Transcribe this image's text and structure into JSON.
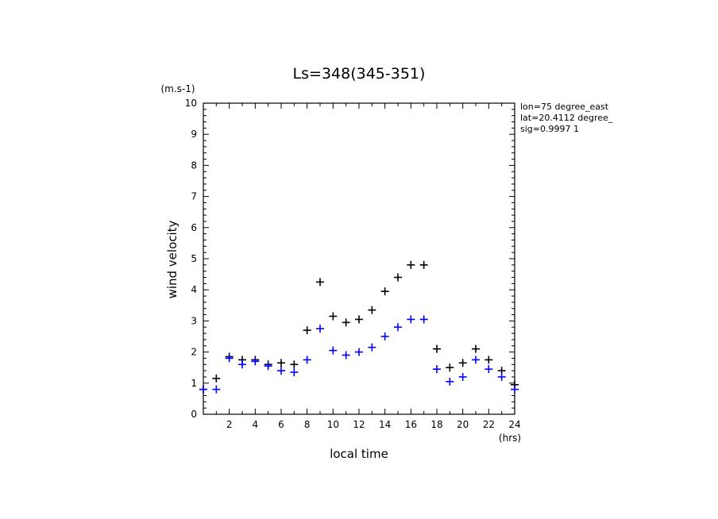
{
  "chart_data": {
    "type": "scatter",
    "title": "Ls=348(345-351)",
    "xlabel": "local time",
    "ylabel": "wind velocity",
    "x_unit": "(hrs)",
    "y_unit": "(m.s-1)",
    "xlim": [
      0,
      24
    ],
    "ylim": [
      0,
      10
    ],
    "x_ticks": [
      "2",
      "4",
      "6",
      "8",
      "10",
      "12",
      "14",
      "16",
      "18",
      "20",
      "22",
      "24"
    ],
    "y_ticks": [
      "0",
      "1",
      "2",
      "3",
      "4",
      "5",
      "6",
      "7",
      "8",
      "9",
      "10"
    ],
    "annotations": [
      "lon=75 degree_east",
      "lat=20.4112 degree_",
      "sig=0.9997 1"
    ],
    "colors": {
      "series_black": "#000000",
      "series_blue": "#0000ff"
    },
    "series": [
      {
        "color": "#000000",
        "x": [
          0,
          1,
          2,
          3,
          4,
          5,
          6,
          7,
          8,
          9,
          10,
          11,
          12,
          13,
          14,
          15,
          16,
          17,
          18,
          19,
          20,
          21,
          22,
          23,
          24
        ],
        "y": [
          0.8,
          1.15,
          1.85,
          1.75,
          1.75,
          1.6,
          1.65,
          1.6,
          2.7,
          4.25,
          3.15,
          2.95,
          3.05,
          3.35,
          3.95,
          4.4,
          4.8,
          4.8,
          2.1,
          1.5,
          1.65,
          2.1,
          1.75,
          1.4,
          0.95
        ]
      },
      {
        "color": "#0000ff",
        "x": [
          0,
          1,
          2,
          3,
          4,
          5,
          6,
          7,
          8,
          9,
          10,
          11,
          12,
          13,
          14,
          15,
          16,
          17,
          18,
          19,
          20,
          21,
          22,
          23,
          24
        ],
        "y": [
          0.8,
          0.8,
          1.8,
          1.6,
          1.7,
          1.55,
          1.4,
          1.35,
          1.75,
          2.75,
          2.05,
          1.9,
          2.0,
          2.15,
          2.5,
          2.8,
          3.05,
          3.05,
          1.45,
          1.05,
          1.2,
          1.75,
          1.45,
          1.2,
          0.8
        ]
      }
    ]
  }
}
